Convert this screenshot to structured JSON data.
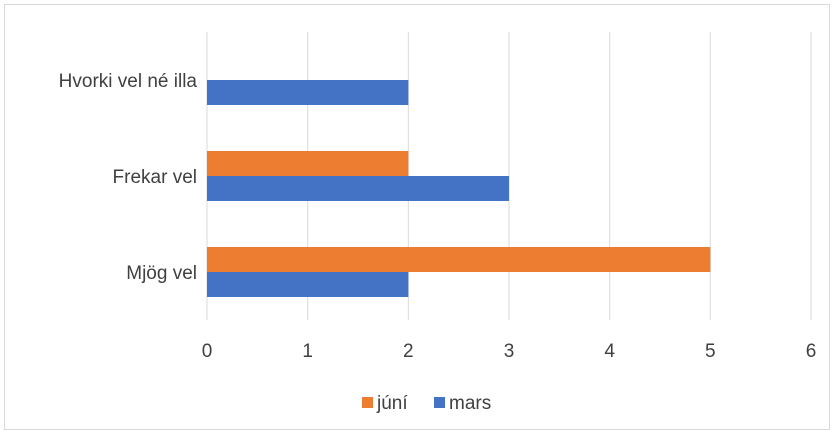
{
  "chart_data": {
    "type": "bar",
    "orientation": "horizontal",
    "categories": [
      "Mjög vel",
      "Frekar vel",
      "Hvorki vel né illa"
    ],
    "series": [
      {
        "name": "júní",
        "values": [
          5,
          2,
          null
        ],
        "color": "#ED7D31"
      },
      {
        "name": "mars",
        "values": [
          2,
          3,
          2
        ],
        "color": "#4472C4"
      }
    ],
    "xlim": [
      0,
      6
    ],
    "x_ticks": [
      "0",
      "1",
      "2",
      "3",
      "4",
      "5",
      "6"
    ],
    "grid": true,
    "legend_position": "bottom",
    "legend_order": [
      "júní",
      "mars"
    ],
    "title": "",
    "xlabel": "",
    "ylabel": ""
  }
}
